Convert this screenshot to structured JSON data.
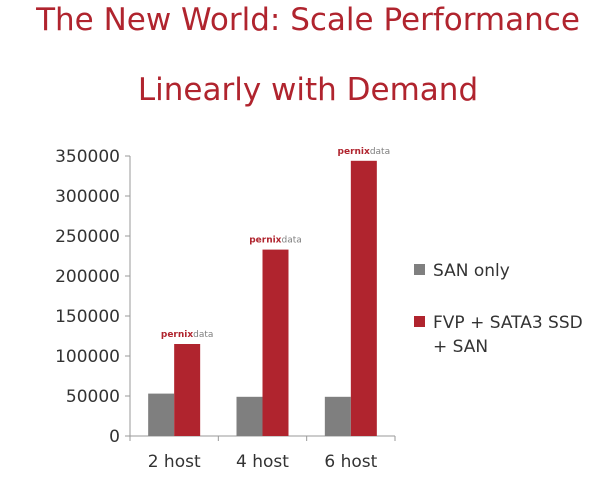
{
  "title_line1": "The New World: Scale Performance",
  "title_line2": "Linearly with Demand",
  "badge": {
    "prefix": "pernix",
    "suffix": "data"
  },
  "chart_data": {
    "type": "bar",
    "categories": [
      "2 host",
      "4 host",
      "6 host"
    ],
    "series": [
      {
        "name": "SAN only",
        "values": [
          53000,
          49000,
          49000
        ],
        "color": "#7f7f7f"
      },
      {
        "name": "FVP + SATA3 SSD + SAN",
        "values": [
          115000,
          233000,
          344000
        ],
        "color": "#b0242e"
      }
    ],
    "yticks": [
      0,
      50000,
      100000,
      150000,
      200000,
      250000,
      300000,
      350000
    ],
    "ylim": [
      0,
      350000
    ],
    "legend_position": "right",
    "badge_color_prefix": "#b0242e",
    "badge_color_suffix": "#7f7f7f"
  }
}
